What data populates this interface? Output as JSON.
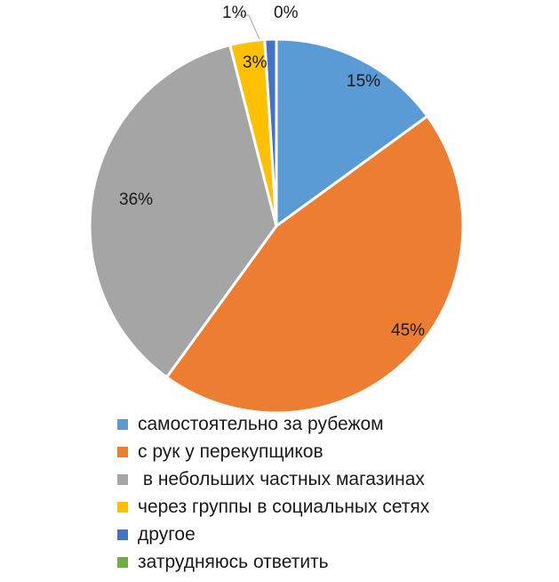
{
  "chart_data": {
    "type": "pie",
    "title": "",
    "slices": [
      {
        "label": "самостоятельно за рубежом",
        "value": 15,
        "value_label": "15%",
        "color": "#5B9BD5"
      },
      {
        "label": "с рук у перекупщиков",
        "value": 45,
        "value_label": "45%",
        "color": "#ED7D31"
      },
      {
        "label": " в небольших частных магазинах",
        "value": 36,
        "value_label": "36%",
        "color": "#A5A5A5"
      },
      {
        "label": "через группы в социальных сетях",
        "value": 3,
        "value_label": "3%",
        "color": "#FFC000"
      },
      {
        "label": "другое",
        "value": 1,
        "value_label": "1%",
        "color": "#4472C4"
      },
      {
        "label": "затрудняюсь ответить",
        "value": 0,
        "value_label": "0%",
        "color": "#70AD47"
      }
    ],
    "legend_position": "bottom"
  }
}
